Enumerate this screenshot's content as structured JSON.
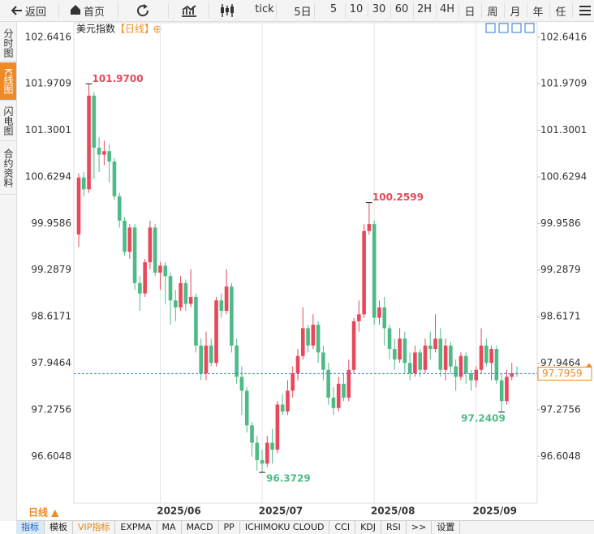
{
  "toolbar": {
    "back": "返回",
    "home": "首页",
    "periods": [
      "tick",
      "5日",
      "5",
      "10",
      "30",
      "60",
      "2H",
      "4H",
      "日",
      "周",
      "月",
      "年",
      "任"
    ]
  },
  "side_tabs": [
    "分时图",
    "K线图",
    "闪电图",
    "合约资料"
  ],
  "chart_data": {
    "type": "candlestick",
    "title": "美元指数",
    "period": "【日线】",
    "categories": [
      null,
      null,
      null,
      null,
      null,
      null,
      null,
      null,
      null,
      null,
      null,
      null,
      null,
      null,
      null,
      null,
      "2025/06",
      null,
      null,
      null,
      null,
      null,
      null,
      null,
      null,
      null,
      null,
      null,
      null,
      null,
      null,
      null,
      null,
      null,
      null,
      null,
      "2025/07",
      null,
      null,
      null,
      null,
      null,
      null,
      null,
      null,
      null,
      null,
      null,
      null,
      null,
      null,
      null,
      null,
      null,
      null,
      null,
      null,
      null,
      "2025/08",
      null,
      null,
      null,
      null,
      null,
      null,
      null,
      null,
      null,
      null,
      null,
      null,
      null,
      null,
      null,
      null,
      null,
      null,
      null,
      "2025/09",
      null,
      null,
      null,
      null,
      null,
      null,
      null,
      null
    ],
    "open": [
      99.8,
      100.62,
      100.45,
      101.8,
      101.05,
      100.95,
      101.0,
      100.85,
      100.35,
      100.0,
      99.55,
      99.9,
      99.1,
      98.95,
      99.4,
      99.9,
      99.25,
      99.35,
      99.2,
      98.85,
      98.75,
      99.1,
      98.8,
      98.9,
      98.2,
      97.8,
      98.2,
      97.95,
      98.85,
      98.7,
      99.05,
      98.2,
      97.75,
      97.55,
      97.05,
      96.8,
      96.55,
      96.5,
      96.8,
      96.7,
      97.35,
      97.25,
      97.55,
      97.8,
      98.05,
      98.45,
      98.2,
      98.5,
      98.1,
      97.85,
      97.45,
      97.3,
      97.65,
      97.45,
      97.85,
      98.55,
      98.65,
      99.85,
      99.95,
      98.6,
      98.75,
      98.45,
      98.15,
      98.0,
      98.3,
      97.95,
      97.8,
      98.1,
      97.85,
      98.2,
      98.15,
      98.3,
      97.85,
      98.2,
      97.9,
      97.75,
      98.05,
      97.8,
      97.7,
      97.85,
      98.2,
      97.95,
      98.15,
      97.7,
      97.4,
      97.75,
      97.8
    ],
    "close": [
      100.62,
      100.45,
      101.8,
      101.05,
      100.95,
      101.0,
      100.85,
      100.35,
      100.0,
      99.55,
      99.9,
      99.1,
      98.95,
      99.4,
      99.9,
      99.25,
      99.35,
      99.2,
      98.85,
      98.75,
      99.1,
      98.8,
      98.9,
      98.2,
      97.8,
      98.2,
      97.95,
      98.85,
      98.7,
      99.05,
      98.2,
      97.75,
      97.55,
      97.05,
      96.8,
      96.55,
      96.5,
      96.8,
      96.7,
      97.35,
      97.25,
      97.55,
      97.8,
      98.05,
      98.45,
      98.2,
      98.5,
      98.1,
      97.85,
      97.45,
      97.3,
      97.65,
      97.45,
      97.85,
      98.55,
      98.65,
      99.85,
      99.95,
      98.6,
      98.75,
      98.45,
      98.15,
      98.0,
      98.3,
      97.95,
      97.8,
      98.1,
      97.85,
      98.2,
      98.15,
      98.3,
      97.85,
      98.2,
      97.9,
      97.75,
      98.05,
      97.8,
      97.7,
      97.85,
      98.2,
      97.95,
      98.15,
      97.7,
      97.4,
      97.75,
      97.8,
      97.7959
    ],
    "high": [
      100.68,
      100.7,
      101.97,
      101.85,
      101.2,
      101.15,
      101.1,
      100.9,
      100.4,
      100.05,
      99.95,
      99.95,
      99.2,
      99.45,
      100.0,
      99.95,
      99.4,
      99.4,
      99.25,
      99.0,
      99.2,
      99.15,
      99.3,
      98.95,
      98.3,
      98.4,
      98.3,
      98.9,
      98.95,
      99.3,
      99.1,
      98.3,
      97.9,
      97.6,
      97.1,
      96.9,
      96.7,
      96.9,
      97.0,
      97.4,
      97.5,
      97.7,
      97.9,
      98.15,
      98.75,
      98.5,
      98.65,
      98.55,
      98.2,
      97.95,
      97.6,
      97.75,
      97.8,
      98.0,
      98.6,
      98.85,
      99.95,
      100.2599,
      100.0,
      98.85,
      98.9,
      98.5,
      98.3,
      98.45,
      98.4,
      98.1,
      98.2,
      98.15,
      98.3,
      98.4,
      98.65,
      98.45,
      98.3,
      98.25,
      98.0,
      98.1,
      98.1,
      97.85,
      97.9,
      98.45,
      98.3,
      98.2,
      98.2,
      97.8,
      97.85,
      97.95,
      97.9
    ],
    "low": [
      99.62,
      100.35,
      100.4,
      100.6,
      100.7,
      100.8,
      100.55,
      100.3,
      99.9,
      99.5,
      99.45,
      99.0,
      98.7,
      98.9,
      99.3,
      99.2,
      99.0,
      98.8,
      98.5,
      98.55,
      98.7,
      98.7,
      98.75,
      98.1,
      97.7,
      97.7,
      97.9,
      97.9,
      98.6,
      98.65,
      98.1,
      97.65,
      97.2,
      96.95,
      96.6,
      96.4,
      96.3729,
      96.45,
      96.5,
      96.65,
      97.2,
      97.2,
      97.45,
      97.7,
      98.0,
      98.1,
      98.15,
      97.95,
      97.7,
      97.35,
      97.2,
      97.25,
      97.4,
      97.4,
      97.8,
      98.4,
      98.6,
      99.8,
      98.5,
      98.5,
      98.2,
      98.0,
      97.85,
      97.95,
      97.8,
      97.7,
      97.75,
      97.75,
      97.8,
      98.0,
      98.1,
      97.75,
      97.7,
      97.8,
      97.55,
      97.7,
      97.65,
      97.55,
      97.6,
      97.8,
      97.9,
      97.7,
      97.65,
      97.2409,
      97.35,
      97.7,
      97.75
    ],
    "up_color": "#e8485a",
    "down_color": "#4fba86",
    "ylim": [
      95.93,
      102.85
    ],
    "yticks": [
      96.6048,
      97.2756,
      97.9464,
      98.6171,
      99.2879,
      99.9586,
      100.6294,
      101.3001,
      101.9709,
      102.6416
    ],
    "annotations": [
      {
        "value": 101.97,
        "label": "101.9700"
      },
      {
        "value": 100.2599,
        "label": "100.2599"
      },
      {
        "value": 96.3729,
        "label": "96.3729"
      },
      {
        "value": 97.2409,
        "label": "97.2409"
      }
    ],
    "last_price": 97.7959,
    "last_price_color": "#2a7bd6"
  },
  "bottom": {
    "period": "日线 ▲",
    "tabs": [
      "指标",
      "模板",
      "VIP指标",
      "EXPMA",
      "MA",
      "MACD",
      "PP",
      "ICHIMOKU CLOUD",
      "CCI",
      "KDJ",
      "RSI",
      ">>",
      "设置"
    ]
  }
}
